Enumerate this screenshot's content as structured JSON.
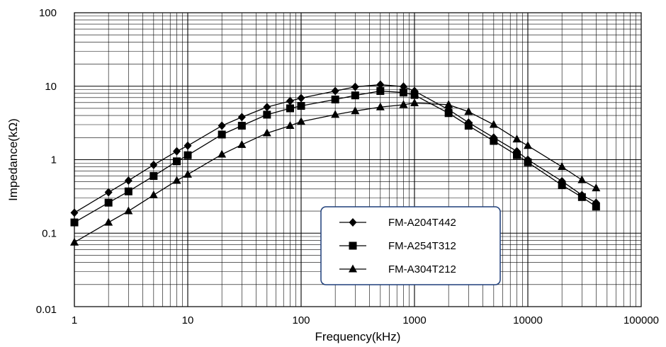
{
  "chart_data": {
    "type": "line",
    "title": "",
    "xlabel": "Frequency(kHz)",
    "ylabel": "Impedance(kΩ)",
    "x_scale": "log",
    "y_scale": "log",
    "xlim": [
      1,
      100000
    ],
    "ylim": [
      0.01,
      100
    ],
    "x_tick_labels": [
      "1",
      "10",
      "100",
      "1000",
      "10000",
      "100000"
    ],
    "y_tick_labels": [
      "100",
      "10",
      "1",
      "0.1",
      "0.01"
    ],
    "grid": true,
    "legend_position": "bottom-center",
    "x": [
      1,
      2,
      3,
      5,
      8,
      10,
      20,
      30,
      50,
      80,
      100,
      200,
      300,
      500,
      800,
      1000,
      2000,
      3000,
      5000,
      8000,
      10000,
      20000,
      30000,
      40000
    ],
    "series": [
      {
        "name": "FM-A204T442",
        "marker": "diamond",
        "values": [
          0.19,
          0.36,
          0.52,
          0.85,
          1.3,
          1.55,
          2.9,
          3.8,
          5.2,
          6.3,
          6.9,
          8.6,
          9.8,
          10.5,
          9.9,
          8.6,
          4.8,
          3.2,
          2.0,
          1.3,
          1.0,
          0.51,
          0.33,
          0.26
        ]
      },
      {
        "name": "FM-A254T312",
        "marker": "square",
        "values": [
          0.14,
          0.26,
          0.37,
          0.6,
          0.95,
          1.15,
          2.2,
          2.9,
          4.1,
          5.0,
          5.4,
          6.6,
          7.5,
          8.6,
          8.2,
          7.6,
          4.3,
          2.9,
          1.8,
          1.15,
          0.92,
          0.45,
          0.31,
          0.23
        ]
      },
      {
        "name": "FM-A304T212",
        "marker": "triangle",
        "values": [
          0.075,
          0.14,
          0.2,
          0.33,
          0.52,
          0.63,
          1.18,
          1.6,
          2.3,
          2.9,
          3.3,
          4.1,
          4.6,
          5.2,
          5.6,
          5.9,
          5.6,
          4.5,
          3.0,
          1.9,
          1.55,
          0.8,
          0.53,
          0.41
        ]
      }
    ],
    "colors": {
      "line": "#000000",
      "grid": "#000000",
      "legend_border": "#1f3f7a"
    }
  }
}
